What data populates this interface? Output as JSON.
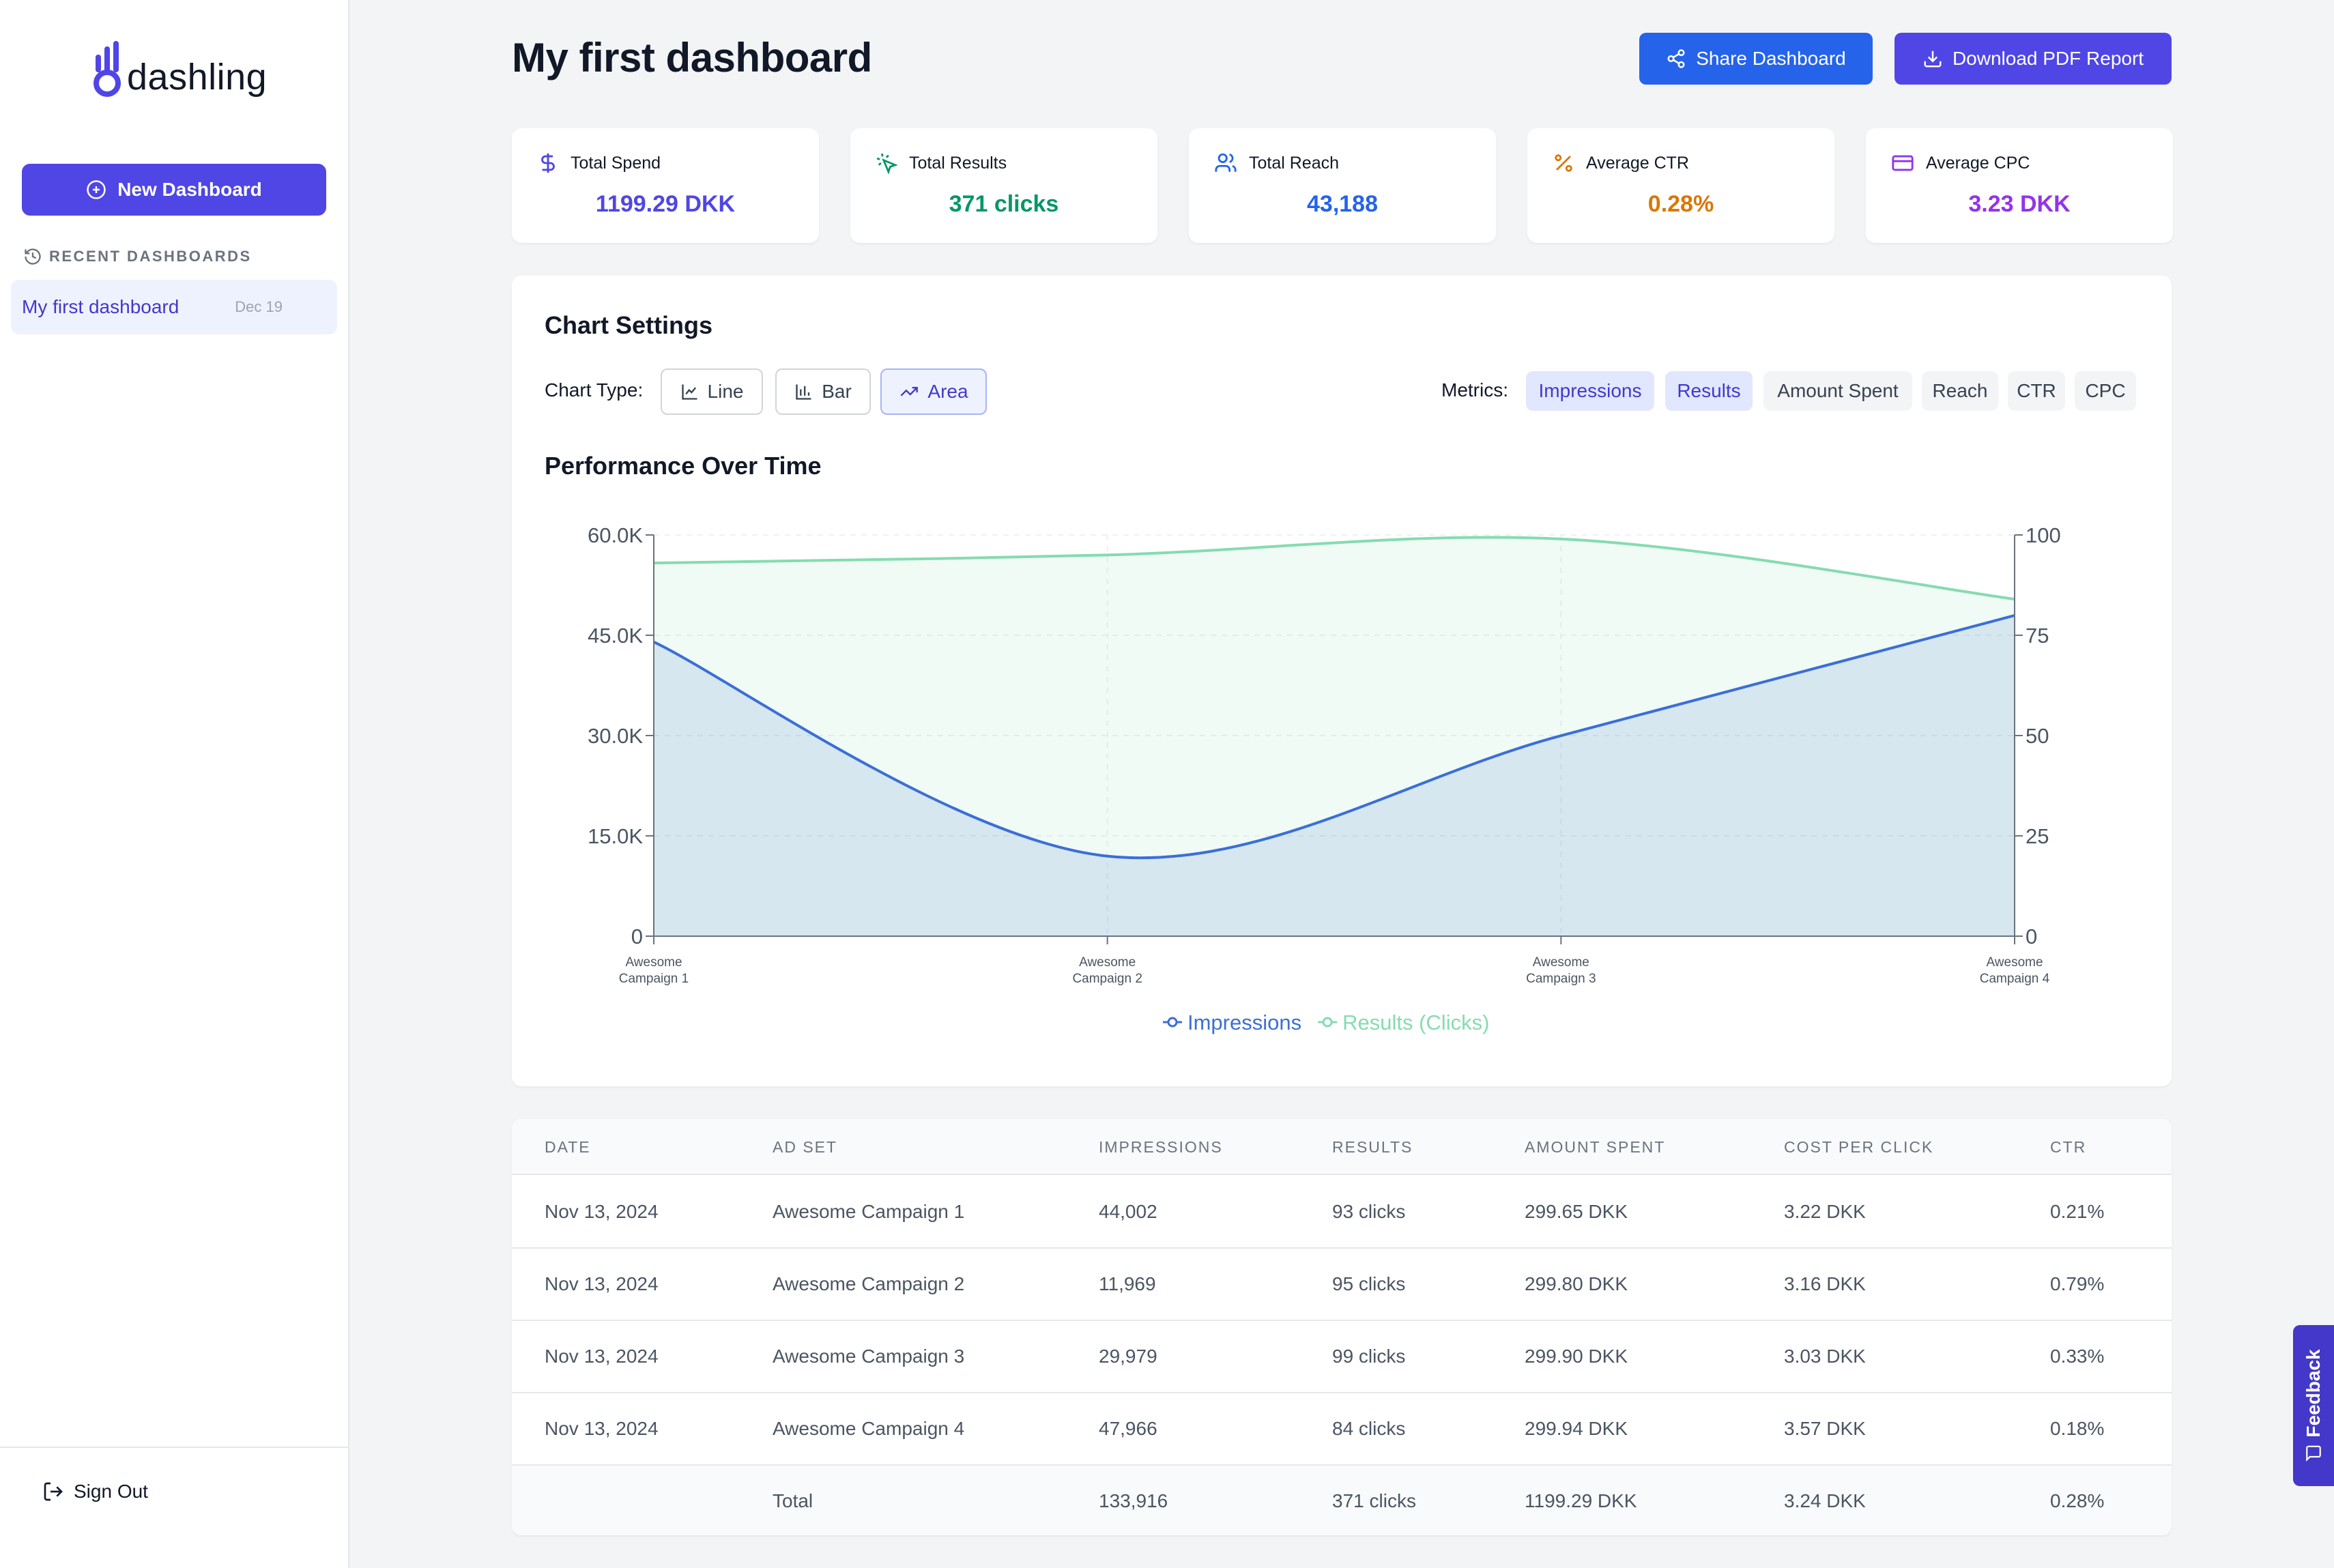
{
  "app": {
    "name": "dashling"
  },
  "sidebar": {
    "new_dashboard_label": "New Dashboard",
    "recent_heading": "RECENT DASHBOARDS",
    "recent": [
      {
        "title": "My first dashboard",
        "date": "Dec 19"
      }
    ],
    "sign_out_label": "Sign Out"
  },
  "header": {
    "title": "My first dashboard",
    "share_label": "Share Dashboard",
    "pdf_label": "Download PDF Report"
  },
  "stats": [
    {
      "label": "Total Spend",
      "value": "1199.29 DKK",
      "icon": "dollar-icon",
      "color": "#4f46e5"
    },
    {
      "label": "Total Results",
      "value": "371 clicks",
      "icon": "click-icon",
      "color": "#059669"
    },
    {
      "label": "Total Reach",
      "value": "43,188",
      "icon": "users-icon",
      "color": "#2563eb"
    },
    {
      "label": "Average CTR",
      "value": "0.28%",
      "icon": "percent-icon",
      "color": "#d97706"
    },
    {
      "label": "Average CPC",
      "value": "3.23 DKK",
      "icon": "credit-card-icon",
      "color": "#9333ea"
    }
  ],
  "chart_settings": {
    "title": "Chart Settings",
    "chart_type_label": "Chart Type:",
    "types": [
      {
        "label": "Line",
        "active": false
      },
      {
        "label": "Bar",
        "active": false
      },
      {
        "label": "Area",
        "active": true
      }
    ],
    "metrics_label": "Metrics:",
    "metrics": [
      {
        "label": "Impressions",
        "selected": true
      },
      {
        "label": "Results",
        "selected": true
      },
      {
        "label": "Amount Spent",
        "selected": false
      },
      {
        "label": "Reach",
        "selected": false
      },
      {
        "label": "CTR",
        "selected": false
      },
      {
        "label": "CPC",
        "selected": false
      }
    ]
  },
  "chart_data": {
    "type": "area",
    "title": "Performance Over Time",
    "categories": [
      "Awesome Campaign 1",
      "Awesome Campaign 2",
      "Awesome Campaign 3",
      "Awesome Campaign 4"
    ],
    "category_lines": [
      [
        "Awesome",
        "Campaign 1"
      ],
      [
        "Awesome",
        "Campaign 2"
      ],
      [
        "Awesome",
        "Campaign 3"
      ],
      [
        "Awesome",
        "Campaign 4"
      ]
    ],
    "series": [
      {
        "name": "Impressions",
        "axis": "left",
        "values": [
          44002,
          11969,
          29979,
          47966
        ],
        "color": "#3b6fd6"
      },
      {
        "name": "Results (Clicks)",
        "axis": "right",
        "values": [
          93,
          95,
          99,
          84
        ],
        "color": "#86dbb0"
      }
    ],
    "y_left": {
      "ylim": [
        0,
        60000
      ],
      "ticks": [
        "0",
        "15.0K",
        "30.0K",
        "45.0K",
        "60.0K"
      ]
    },
    "y_right": {
      "ylim": [
        0,
        100
      ],
      "ticks": [
        "0",
        "25",
        "50",
        "75",
        "100"
      ]
    },
    "grid": true,
    "legend": "bottom-center"
  },
  "table": {
    "columns": [
      "DATE",
      "AD SET",
      "IMPRESSIONS",
      "RESULTS",
      "AMOUNT SPENT",
      "COST PER CLICK",
      "CTR"
    ],
    "rows": [
      [
        "Nov 13, 2024",
        "Awesome Campaign 1",
        "44,002",
        "93 clicks",
        "299.65 DKK",
        "3.22 DKK",
        "0.21%"
      ],
      [
        "Nov 13, 2024",
        "Awesome Campaign 2",
        "11,969",
        "95 clicks",
        "299.80 DKK",
        "3.16 DKK",
        "0.79%"
      ],
      [
        "Nov 13, 2024",
        "Awesome Campaign 3",
        "29,979",
        "99 clicks",
        "299.90 DKK",
        "3.03 DKK",
        "0.33%"
      ],
      [
        "Nov 13, 2024",
        "Awesome Campaign 4",
        "47,966",
        "84 clicks",
        "299.94 DKK",
        "3.57 DKK",
        "0.18%"
      ]
    ],
    "total": [
      "",
      "Total",
      "133,916",
      "371 clicks",
      "1199.29 DKK",
      "3.24 DKK",
      "0.28%"
    ]
  },
  "feedback_label": "Feedback"
}
